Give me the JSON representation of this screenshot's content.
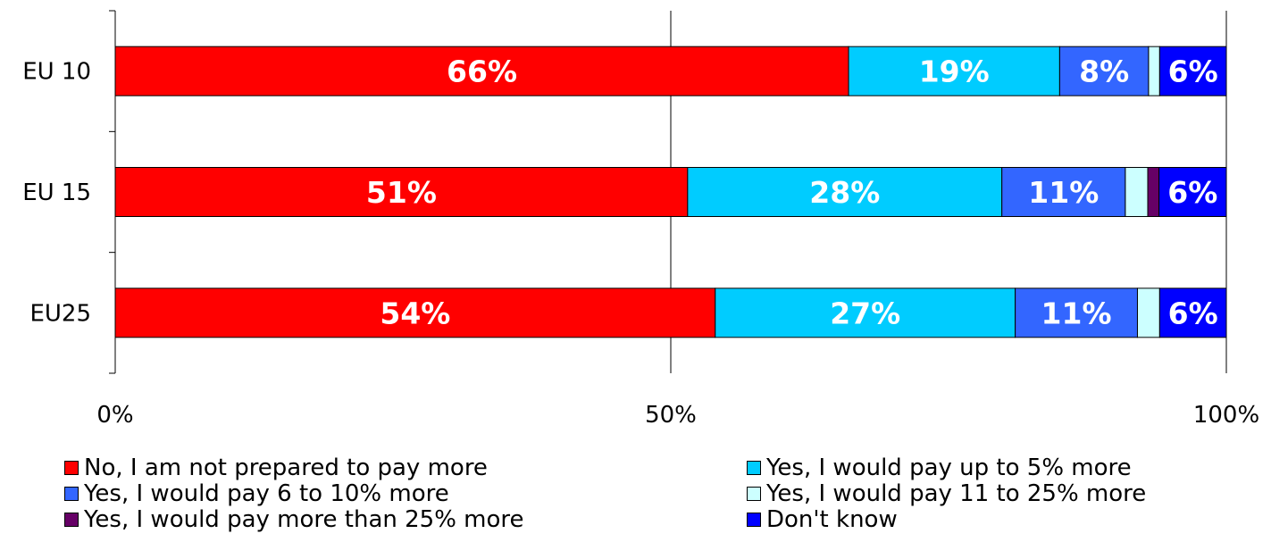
{
  "chart_data": {
    "type": "bar",
    "orientation": "horizontal",
    "stacked": true,
    "categories": [
      "EU 10",
      "EU 15",
      "EU25"
    ],
    "series": [
      {
        "name": "No, I am not prepared to pay more",
        "color": "#ff0000",
        "values": [
          66,
          51,
          54
        ],
        "labels": [
          "66%",
          "51%",
          "54%"
        ]
      },
      {
        "name": "Yes, I would pay up to 5% more",
        "color": "#00ccff",
        "values": [
          19,
          28,
          27
        ],
        "labels": [
          "19%",
          "28%",
          "27%"
        ]
      },
      {
        "name": "Yes, I would pay 6 to 10% more",
        "color": "#3366ff",
        "values": [
          8,
          11,
          11
        ],
        "labels": [
          "8%",
          "11%",
          "11%"
        ]
      },
      {
        "name": "Yes, I would pay 11 to 25% more",
        "color": "#ccffff",
        "values": [
          1,
          2,
          2
        ],
        "labels": [
          "",
          "",
          ""
        ]
      },
      {
        "name": "Yes, I would pay more than 25% more",
        "color": "#660066",
        "values": [
          0,
          1,
          0
        ],
        "labels": [
          "",
          "",
          ""
        ]
      },
      {
        "name": "Don't know",
        "color": "#0000ff",
        "values": [
          6,
          6,
          6
        ],
        "labels": [
          "6%",
          "6%",
          "6%"
        ]
      }
    ],
    "xlim": [
      0,
      100
    ],
    "xticks": [
      0,
      50,
      100
    ],
    "xtick_labels": [
      "0%",
      "50%",
      "100%"
    ],
    "grid": "vertical",
    "legend_position": "bottom",
    "title": "",
    "xlabel": "",
    "ylabel": ""
  }
}
